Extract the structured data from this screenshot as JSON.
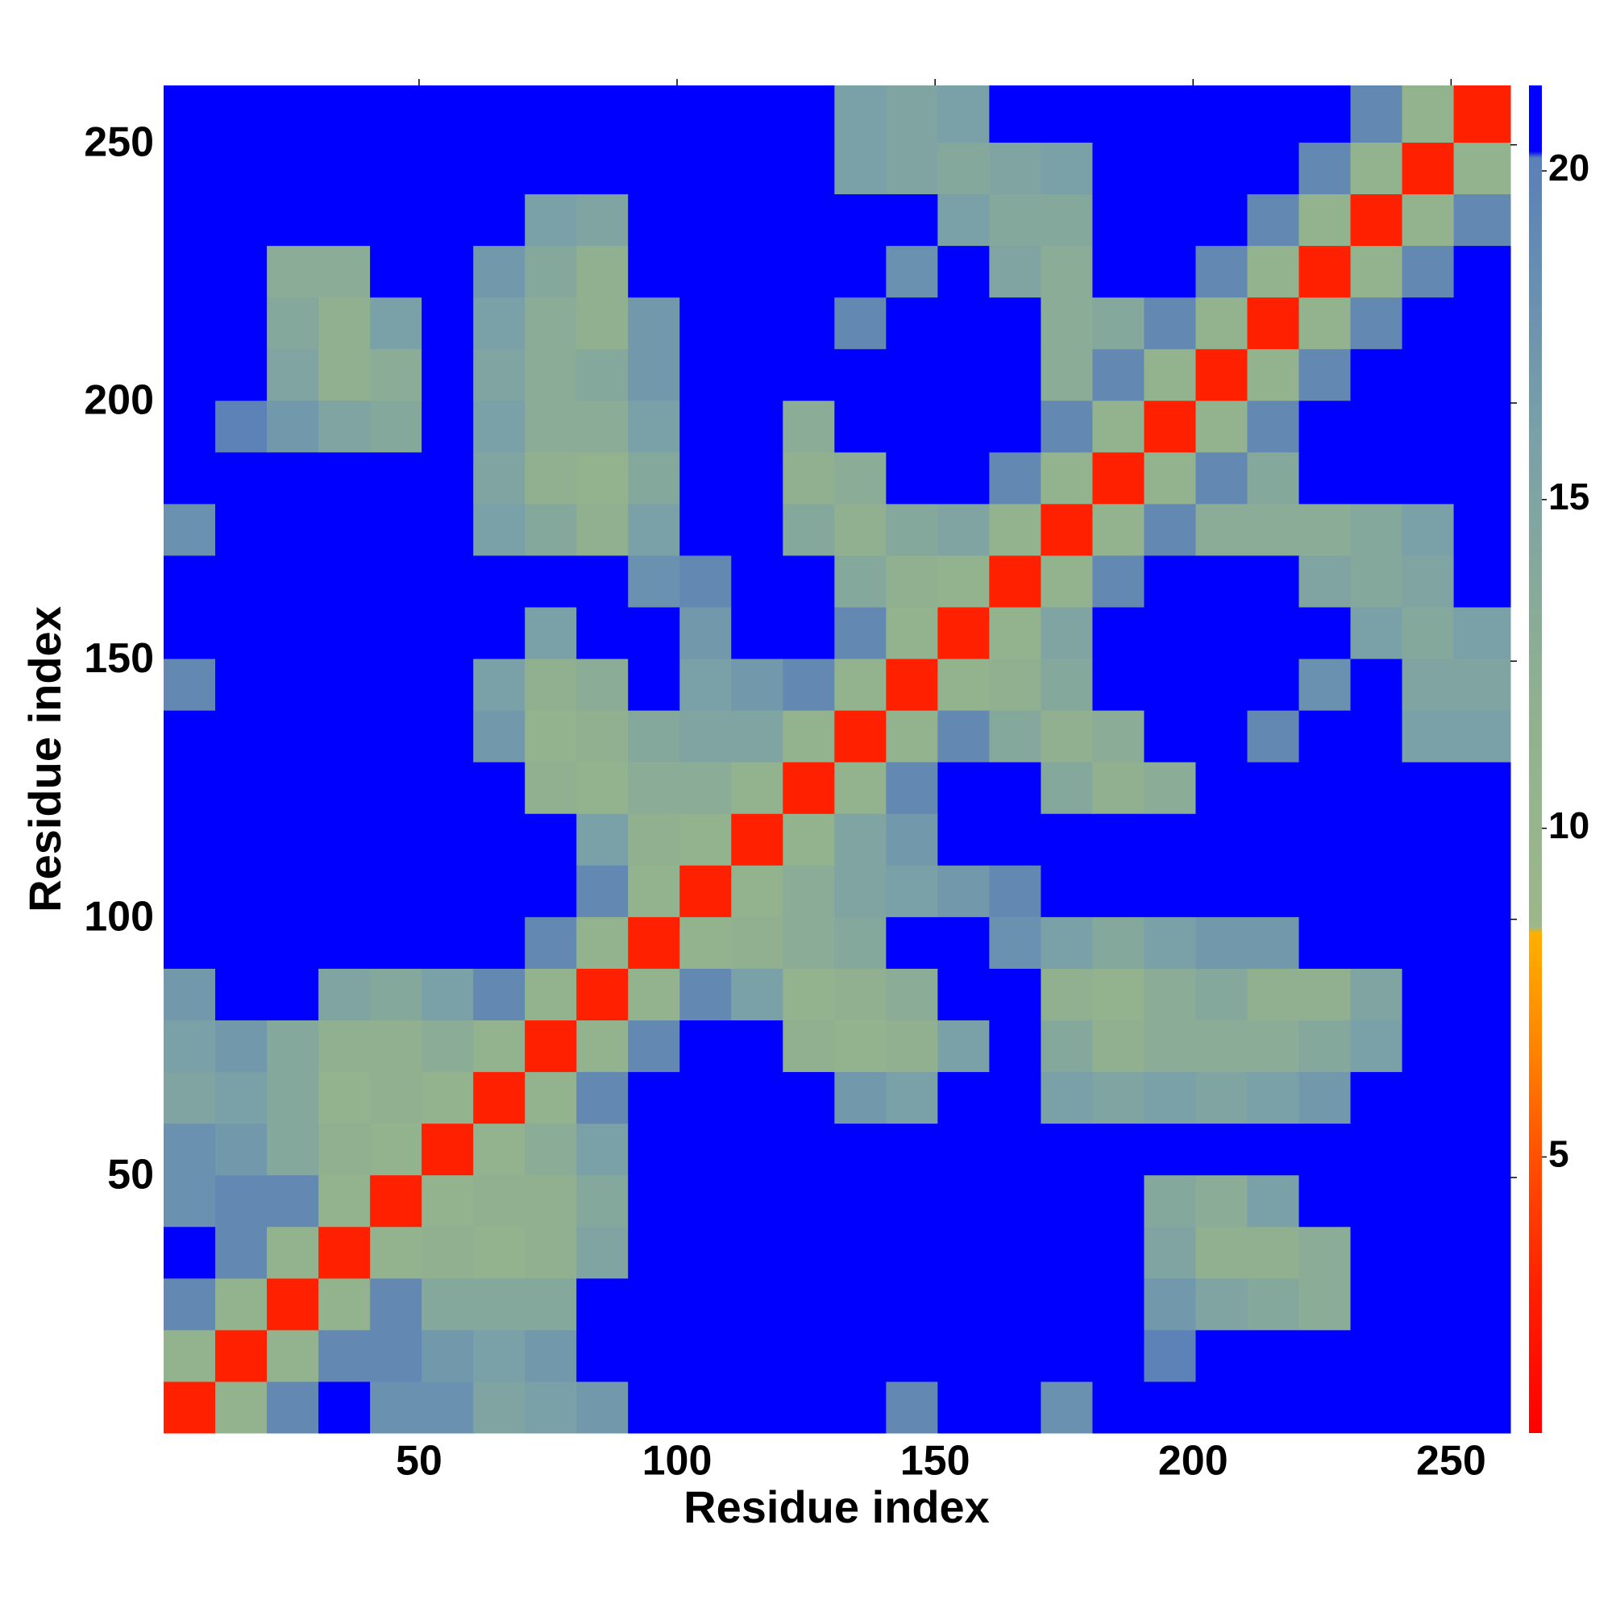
{
  "chart_data": {
    "type": "heatmap",
    "xlabel": "Residue index",
    "ylabel": "Residue index",
    "x_bins": [
      0.5,
      10.5,
      20.5,
      30.5,
      40.5,
      50.5,
      60.5,
      70.5,
      80.5,
      90.5,
      100.5,
      110.5,
      120.5,
      130.5,
      140.5,
      150.5,
      160.5,
      170.5,
      180.5,
      190.5,
      200.5,
      210.5,
      220.5,
      230.5,
      240.5,
      250.5,
      261.5
    ],
    "y_bins": [
      0.5,
      10.5,
      20.5,
      30.5,
      40.5,
      50.5,
      60.5,
      70.5,
      80.5,
      90.5,
      100.5,
      110.5,
      120.5,
      130.5,
      140.5,
      150.5,
      160.5,
      170.5,
      180.5,
      190.5,
      200.5,
      210.5,
      220.5,
      230.5,
      240.5,
      250.5,
      261.5
    ],
    "xlim": [
      0.5,
      261.5
    ],
    "ylim": [
      0.5,
      261.5
    ],
    "xticks": [
      50,
      100,
      150,
      200,
      250
    ],
    "yticks": [
      50,
      100,
      150,
      200,
      250
    ],
    "z": [
      [
        3,
        11,
        19,
        21,
        18,
        18,
        15,
        16,
        17,
        21,
        21,
        21,
        21,
        21,
        19,
        21,
        21,
        18,
        21,
        21,
        21,
        21,
        21,
        21,
        21,
        21
      ],
      [
        11,
        3,
        11,
        19,
        19,
        17,
        16,
        17,
        21,
        21,
        21,
        21,
        21,
        21,
        21,
        21,
        21,
        21,
        21,
        20,
        21,
        21,
        21,
        21,
        21,
        21
      ],
      [
        19,
        11,
        3,
        11,
        19,
        14,
        14,
        14,
        21,
        21,
        21,
        21,
        21,
        21,
        21,
        21,
        21,
        21,
        21,
        17,
        15,
        14,
        13,
        21,
        21,
        21
      ],
      [
        21,
        19,
        11,
        3,
        11,
        12,
        11,
        12,
        15,
        21,
        21,
        21,
        21,
        21,
        21,
        21,
        21,
        21,
        21,
        15,
        12,
        12,
        13,
        21,
        21,
        21
      ],
      [
        18,
        19,
        19,
        11,
        3,
        11,
        12,
        12,
        14,
        21,
        21,
        21,
        21,
        21,
        21,
        21,
        21,
        21,
        21,
        14,
        13,
        16,
        21,
        21,
        21,
        21
      ],
      [
        18,
        17,
        14,
        12,
        11,
        3,
        11,
        13,
        16,
        21,
        21,
        21,
        21,
        21,
        21,
        21,
        21,
        21,
        21,
        21,
        21,
        21,
        21,
        21,
        21,
        21
      ],
      [
        15,
        16,
        14,
        11,
        12,
        11,
        3,
        11,
        19,
        21,
        21,
        21,
        21,
        17,
        16,
        21,
        21,
        16,
        15,
        16,
        15,
        16,
        17,
        21,
        21,
        21
      ],
      [
        16,
        17,
        14,
        12,
        12,
        13,
        11,
        3,
        11,
        19,
        21,
        21,
        12,
        11,
        12,
        16,
        21,
        14,
        12,
        13,
        13,
        13,
        14,
        16,
        21,
        21
      ],
      [
        17,
        21,
        21,
        15,
        14,
        16,
        19,
        11,
        3,
        11,
        19,
        16,
        11,
        12,
        13,
        21,
        21,
        12,
        11,
        13,
        14,
        12,
        12,
        15,
        21,
        21
      ],
      [
        21,
        21,
        21,
        21,
        21,
        21,
        21,
        19,
        11,
        3,
        11,
        12,
        13,
        14,
        21,
        21,
        18,
        16,
        14,
        16,
        17,
        17,
        21,
        21,
        21,
        21
      ],
      [
        21,
        21,
        21,
        21,
        21,
        21,
        21,
        21,
        19,
        11,
        3,
        11,
        13,
        15,
        16,
        17,
        19,
        21,
        21,
        21,
        21,
        21,
        21,
        21,
        21,
        21
      ],
      [
        21,
        21,
        21,
        21,
        21,
        21,
        21,
        21,
        16,
        12,
        11,
        3,
        11,
        15,
        17,
        21,
        21,
        21,
        21,
        21,
        21,
        21,
        21,
        21,
        21,
        21
      ],
      [
        21,
        21,
        21,
        21,
        21,
        21,
        21,
        12,
        11,
        13,
        13,
        11,
        3,
        11,
        19,
        21,
        21,
        14,
        12,
        13,
        21,
        21,
        21,
        21,
        21,
        21
      ],
      [
        21,
        21,
        21,
        21,
        21,
        21,
        17,
        11,
        12,
        14,
        15,
        15,
        11,
        3,
        11,
        19,
        14,
        12,
        13,
        21,
        21,
        19,
        21,
        21,
        16,
        16
      ],
      [
        19,
        21,
        21,
        21,
        21,
        21,
        16,
        12,
        13,
        21,
        16,
        17,
        19,
        11,
        3,
        11,
        12,
        14,
        21,
        21,
        21,
        21,
        18,
        21,
        15,
        15
      ],
      [
        21,
        21,
        21,
        21,
        21,
        21,
        21,
        16,
        21,
        21,
        17,
        21,
        21,
        19,
        11,
        3,
        11,
        15,
        21,
        21,
        21,
        21,
        21,
        16,
        14,
        16
      ],
      [
        21,
        21,
        21,
        21,
        21,
        21,
        21,
        21,
        21,
        18,
        19,
        21,
        21,
        14,
        12,
        11,
        3,
        11,
        19,
        21,
        21,
        21,
        15,
        14,
        15,
        21
      ],
      [
        18,
        21,
        21,
        21,
        21,
        21,
        16,
        14,
        12,
        16,
        21,
        21,
        14,
        12,
        14,
        15,
        11,
        3,
        11,
        19,
        13,
        13,
        13,
        14,
        16,
        21
      ],
      [
        21,
        21,
        21,
        21,
        21,
        21,
        15,
        12,
        11,
        14,
        21,
        21,
        12,
        13,
        21,
        21,
        19,
        11,
        3,
        11,
        19,
        14,
        21,
        21,
        21,
        21
      ],
      [
        21,
        20,
        17,
        15,
        14,
        21,
        16,
        13,
        13,
        16,
        21,
        21,
        13,
        21,
        21,
        21,
        21,
        19,
        11,
        3,
        11,
        19,
        21,
        21,
        21,
        21
      ],
      [
        21,
        21,
        15,
        12,
        13,
        21,
        15,
        13,
        14,
        17,
        21,
        21,
        21,
        21,
        21,
        21,
        21,
        13,
        19,
        11,
        3,
        11,
        19,
        21,
        21,
        21
      ],
      [
        21,
        21,
        14,
        12,
        16,
        21,
        16,
        13,
        12,
        17,
        21,
        21,
        21,
        19,
        21,
        21,
        21,
        13,
        14,
        19,
        11,
        3,
        11,
        19,
        21,
        21
      ],
      [
        21,
        21,
        13,
        13,
        21,
        21,
        17,
        14,
        12,
        21,
        21,
        21,
        21,
        21,
        18,
        21,
        15,
        13,
        21,
        21,
        19,
        11,
        3,
        11,
        19,
        21
      ],
      [
        21,
        21,
        21,
        21,
        21,
        21,
        21,
        16,
        15,
        21,
        21,
        21,
        21,
        21,
        21,
        16,
        14,
        14,
        21,
        21,
        21,
        19,
        11,
        3,
        11,
        19
      ],
      [
        21,
        21,
        21,
        21,
        21,
        21,
        21,
        21,
        21,
        21,
        21,
        21,
        21,
        16,
        15,
        14,
        15,
        16,
        21,
        21,
        21,
        21,
        19,
        11,
        3,
        11
      ],
      [
        21,
        21,
        21,
        21,
        21,
        21,
        21,
        21,
        21,
        21,
        21,
        21,
        21,
        16,
        15,
        16,
        21,
        21,
        21,
        21,
        21,
        21,
        21,
        19,
        11,
        3
      ]
    ],
    "colorbar": {
      "zlim": [
        0.8,
        21.3
      ],
      "ticks": [
        5,
        10,
        15,
        20
      ],
      "colorscale": [
        [
          0.8,
          "#ff0000"
        ],
        [
          3,
          "#ff2000"
        ],
        [
          5,
          "#ff5000"
        ],
        [
          6.5,
          "#ff8000"
        ],
        [
          8.4,
          "#ffb000"
        ],
        [
          8.5,
          "#9cb88a"
        ],
        [
          12,
          "#90b090"
        ],
        [
          16,
          "#7aa0a8"
        ],
        [
          20.2,
          "#5a80b8"
        ],
        [
          20.3,
          "#0000ff"
        ]
      ]
    }
  }
}
